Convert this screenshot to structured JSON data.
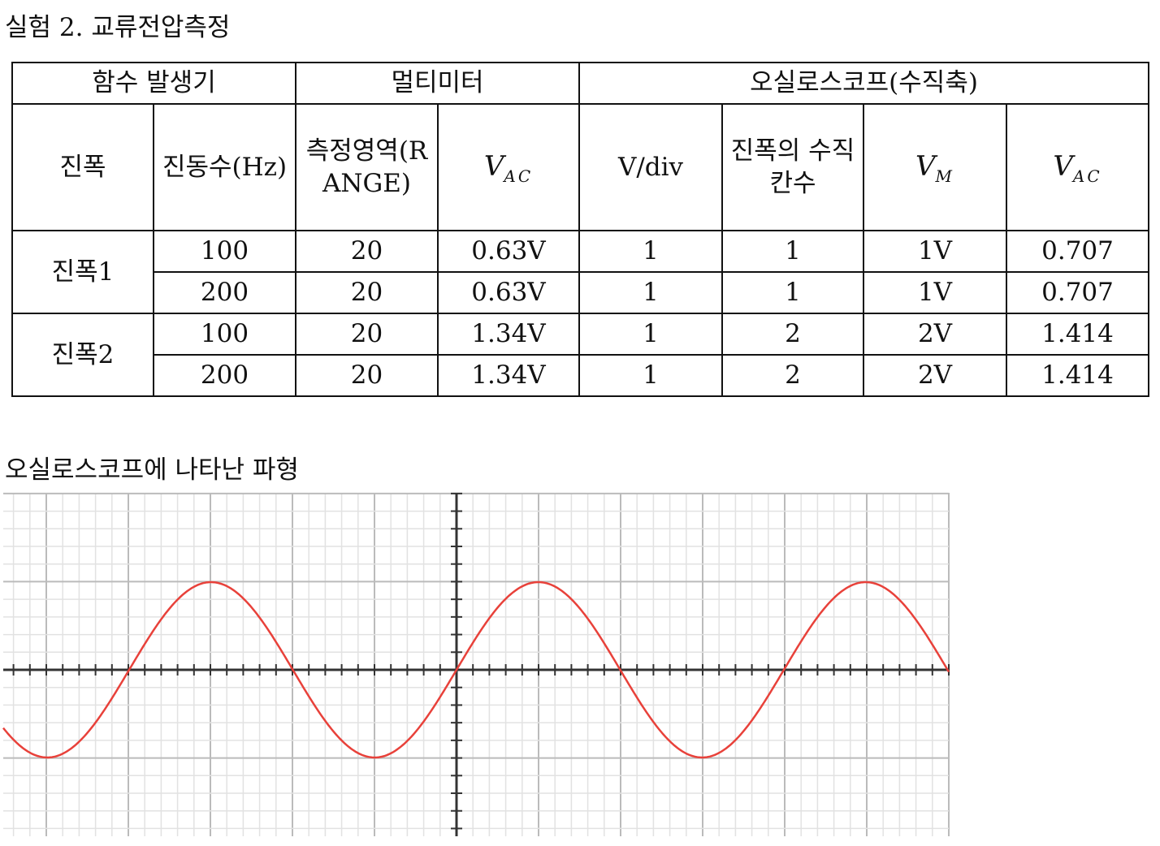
{
  "title": "실험 2. 교류전압측정",
  "table": {
    "groups": [
      "함수 발생기",
      "멀티미터",
      "오실로스코프(수직축)"
    ],
    "columns": [
      {
        "text": "진폭"
      },
      {
        "text": "진동수(Hz)"
      },
      {
        "text": "측정영역(RANGE)"
      },
      {
        "main": "V",
        "sub": "AC"
      },
      {
        "text": "V/div"
      },
      {
        "text": "진폭의 수직칸수"
      },
      {
        "main": "V",
        "sub": "M"
      },
      {
        "main": "V",
        "sub": "AC"
      }
    ],
    "rows": [
      {
        "label": "진폭1",
        "cells": [
          [
            "100",
            "20",
            "0.63V",
            "1",
            "1",
            "1V",
            "0.707"
          ],
          [
            "200",
            "20",
            "0.63V",
            "1",
            "1",
            "1V",
            "0.707"
          ]
        ]
      },
      {
        "label": "진폭2",
        "cells": [
          [
            "100",
            "20",
            "1.34V",
            "1",
            "2",
            "2V",
            "1.414"
          ],
          [
            "200",
            "20",
            "1.34V",
            "1",
            "2",
            "2V",
            "1.414"
          ]
        ]
      }
    ]
  },
  "caption": "오실로스코프에 나타난 파형"
}
